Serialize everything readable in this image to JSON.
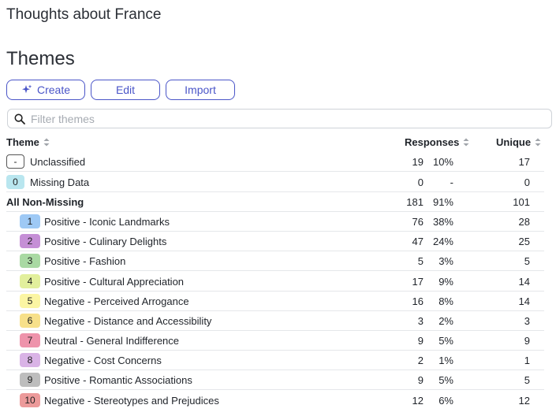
{
  "page": {
    "title": "Thoughts about France",
    "heading": "Themes"
  },
  "toolbar": {
    "create_label": "Create",
    "edit_label": "Edit",
    "import_label": "Import",
    "create_icon": "sparkle-icon"
  },
  "filter": {
    "placeholder": "Filter themes",
    "icon": "search-icon"
  },
  "table": {
    "headers": {
      "theme": "Theme",
      "responses": "Responses",
      "unique": "Unique"
    },
    "special_rows": [
      {
        "badge": "-",
        "label": "Unclassified",
        "count": "19",
        "pct": "10%",
        "unique": "17"
      },
      {
        "badge": "0",
        "label": "Missing Data",
        "count": "0",
        "pct": "-",
        "unique": "0",
        "color": "#b9e6ef"
      },
      {
        "label": "All Non-Missing",
        "count": "181",
        "pct": "91%",
        "unique": "101"
      }
    ],
    "themes": [
      {
        "badge": "1",
        "label": "Positive - Iconic Landmarks",
        "count": "76",
        "pct": "38%",
        "unique": "28",
        "color": "#9ec9f5"
      },
      {
        "badge": "2",
        "label": "Positive - Culinary Delights",
        "count": "47",
        "pct": "24%",
        "unique": "25",
        "color": "#c58fd6"
      },
      {
        "badge": "3",
        "label": "Positive - Fashion",
        "count": "5",
        "pct": "3%",
        "unique": "5",
        "color": "#a9d9a3"
      },
      {
        "badge": "4",
        "label": "Positive - Cultural Appreciation",
        "count": "17",
        "pct": "9%",
        "unique": "14",
        "color": "#e2ef9c"
      },
      {
        "badge": "5",
        "label": "Negative - Perceived Arrogance",
        "count": "16",
        "pct": "8%",
        "unique": "14",
        "color": "#fbf5a3"
      },
      {
        "badge": "6",
        "label": "Negative - Distance and Accessibility",
        "count": "3",
        "pct": "2%",
        "unique": "3",
        "color": "#f7e08a"
      },
      {
        "badge": "7",
        "label": "Neutral - General Indifference",
        "count": "9",
        "pct": "5%",
        "unique": "9",
        "color": "#ee93ab"
      },
      {
        "badge": "8",
        "label": "Negative - Cost Concerns",
        "count": "2",
        "pct": "1%",
        "unique": "1",
        "color": "#d9b3e6"
      },
      {
        "badge": "9",
        "label": "Positive - Romantic Associations",
        "count": "9",
        "pct": "5%",
        "unique": "5",
        "color": "#bdbdbd"
      },
      {
        "badge": "10",
        "label": "Negative - Stereotypes and Prejudices",
        "count": "12",
        "pct": "6%",
        "unique": "12",
        "color": "#ec9a9a"
      }
    ]
  }
}
